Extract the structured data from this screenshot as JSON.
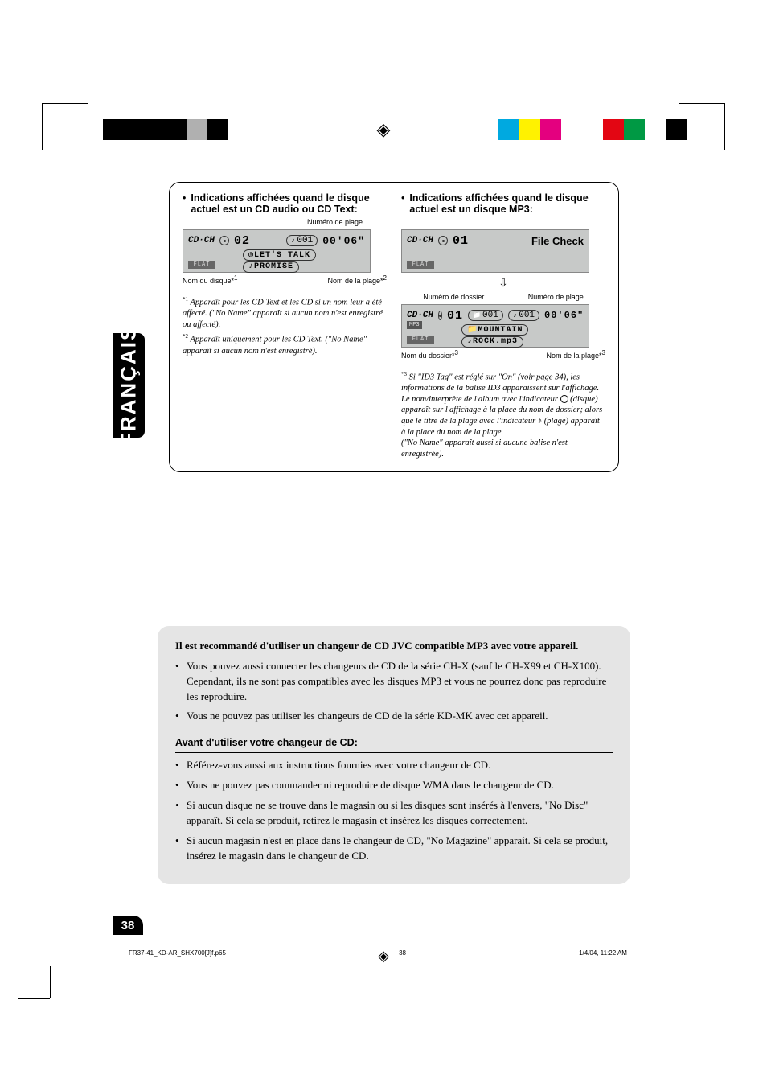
{
  "reg_colors_left": [
    "#000000",
    "#000000",
    "#000000",
    "#000000",
    "#b0b0b0",
    "#000000",
    "#ffffff",
    "#ffffff",
    "#ffffff"
  ],
  "reg_colors_right": [
    "#00a9e0",
    "#fff200",
    "#e4007f",
    "#ffffff",
    "#ffffff",
    "#e30613",
    "#009944",
    "#ffffff",
    "#000000"
  ],
  "language_tab": "FRANÇAIS",
  "panel": {
    "left": {
      "heading": "Indications affichées quand le disque actuel est un CD audio ou CD Text:",
      "track_caption": "Numéro de plage",
      "disc_name_caption": "Nom du disque*",
      "disc_name_sup": "1",
      "track_name_caption": "Nom de la plage*",
      "track_name_sup": "2",
      "lcd": {
        "mode": "CD·CH",
        "disc_num": "02",
        "track_pill": "001",
        "time": "00'06\"",
        "line2": "LET'S TALK",
        "line3": "PROMISE",
        "eq": "FLAT"
      },
      "footnotes": [
        {
          "sup": "*1",
          "text": "Apparaît pour les CD Text et les CD si un nom leur a été affecté. (\"No Name\" apparaît si aucun nom n'est enregistré ou affecté)."
        },
        {
          "sup": "*2",
          "text": "Apparaît uniquement pour les CD Text. (\"No Name\" apparaît si aucun nom n'est enregistré)."
        }
      ]
    },
    "right": {
      "heading": "Indications affichées quand le disque actuel est un disque MP3:",
      "lcd1": {
        "mode": "CD·CH",
        "disc_num": "01",
        "filecheck": "File Check",
        "eq": "FLAT"
      },
      "folder_caption": "Numéro de dossier",
      "track_caption": "Numéro de plage",
      "lcd2": {
        "mode": "CD·CH",
        "mp3": "MP3",
        "disc_num": "01",
        "folder_pill": "001",
        "track_pill": "001",
        "time": "00'06\"",
        "line2": "MOUNTAIN",
        "line3": "ROCK.mp3",
        "eq": "FLAT"
      },
      "folder_name_caption": "Nom du dossier*",
      "folder_name_sup": "3",
      "track_name_caption": "Nom de la plage*",
      "track_name_sup": "3",
      "footnote": {
        "sup": "*3",
        "text_a": "Si \"ID3 Tag\" est réglé sur \"On\" (voir page 34), les informations de la balise ID3 apparaissent sur l'affichage. Le nom/interprète de l'album avec l'indicateur ",
        "text_b": " (disque) apparaît sur l'affichage à la place du nom de dossier; alors que le titre de la plage avec l'indicateur ",
        "text_c": " (plage) apparaît à la place du nom de la plage.",
        "text_d": "(\"No Name\" apparaît aussi si aucune balise n'est enregistrée)."
      }
    }
  },
  "gray": {
    "lead": "Il est recommandé d'utiliser un changeur de CD JVC compatible MP3 avec votre appareil.",
    "bullets_a": [
      "Vous pouvez aussi connecter les changeurs de CD de la série CH-X (sauf le CH-X99 et CH-X100). Cependant, ils ne sont pas compatibles avec les disques MP3 et vous ne pourrez donc pas reproduire les reproduire.",
      "Vous ne pouvez pas utiliser les changeurs de CD de la série KD-MK avec cet appareil."
    ],
    "subhead": "Avant d'utiliser votre changeur de CD:",
    "bullets_b": [
      "Référez-vous aussi aux instructions fournies avec votre changeur de CD.",
      "Vous ne pouvez pas commander ni reproduire de disque WMA dans le changeur de CD.",
      "Si aucun disque ne se trouve dans le magasin ou si les disques sont insérés à l'envers, \"No Disc\" apparaît. Si cela se produit, retirez le magasin et insérez les disques correctement.",
      "Si aucun magasin n'est en place dans le changeur de CD, \"No Magazine\" apparaît. Si cela se produit, insérez le magasin dans le changeur de CD."
    ]
  },
  "page_number": "38",
  "footer": {
    "file": "FR37-41_KD-AR_SHX700[J]f.p65",
    "page": "38",
    "date": "1/4/04, 11:22 AM"
  }
}
